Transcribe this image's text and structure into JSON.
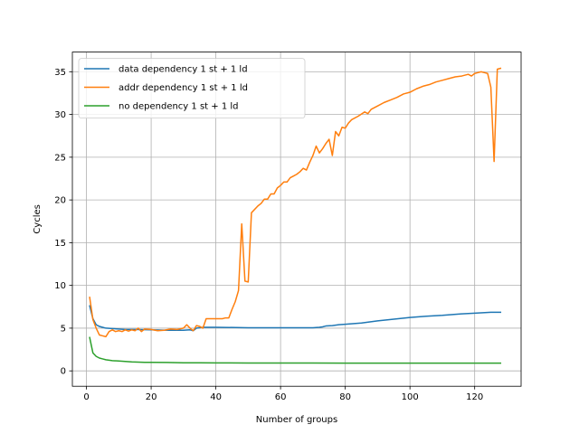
{
  "chart_data": {
    "type": "line",
    "title": "",
    "xlabel": "Number of groups",
    "ylabel": "Cycles",
    "xlim": [
      -4.35,
      134.35
    ],
    "ylim": [
      -1.8,
      37.3
    ],
    "xticks": [
      0,
      20,
      40,
      60,
      80,
      100,
      120
    ],
    "yticks": [
      0,
      5,
      10,
      15,
      20,
      25,
      30,
      35
    ],
    "grid": true,
    "legend_position": "top-left",
    "series": [
      {
        "name": "data dependency 1 st + 1 ld",
        "color": "#1f77b4",
        "x": [
          1,
          2,
          3,
          4,
          5,
          6,
          8,
          10,
          12,
          15,
          20,
          25,
          30,
          32,
          33,
          34,
          35,
          36,
          40,
          50,
          60,
          70,
          72,
          73,
          74,
          76,
          78,
          80,
          85,
          90,
          95,
          100,
          105,
          110,
          115,
          120,
          125,
          128
        ],
        "y": [
          7.6,
          6.1,
          5.4,
          5.2,
          5.1,
          5.0,
          4.95,
          4.9,
          4.85,
          4.85,
          4.8,
          4.75,
          4.75,
          4.8,
          4.7,
          5.0,
          5.05,
          5.1,
          5.1,
          5.05,
          5.05,
          5.05,
          5.1,
          5.15,
          5.25,
          5.3,
          5.4,
          5.45,
          5.6,
          5.85,
          6.05,
          6.25,
          6.4,
          6.5,
          6.65,
          6.75,
          6.85,
          6.85
        ]
      },
      {
        "name": "addr dependency 1 st + 1 ld",
        "color": "#ff7f0e",
        "x": [
          1,
          2,
          3,
          4,
          5,
          6,
          7,
          8,
          9,
          10,
          11,
          12,
          13,
          14,
          15,
          16,
          17,
          18,
          20,
          22,
          24,
          26,
          28,
          30,
          31,
          32,
          33,
          34,
          35,
          36,
          37,
          38,
          40,
          42,
          43,
          44,
          45,
          46,
          47,
          48,
          49,
          50,
          51,
          53,
          54,
          55,
          56,
          57,
          58,
          59,
          60,
          61,
          62,
          63,
          64,
          65,
          66,
          67,
          68,
          69,
          70,
          71,
          72,
          73,
          74,
          75,
          76,
          77,
          78,
          79,
          80,
          81,
          82,
          84,
          86,
          87,
          88,
          90,
          92,
          94,
          96,
          98,
          100,
          102,
          104,
          106,
          108,
          110,
          112,
          114,
          116,
          118,
          119,
          120,
          121,
          122,
          123,
          124,
          125,
          126,
          127,
          128
        ],
        "y": [
          8.6,
          6.0,
          5.0,
          4.2,
          4.1,
          4.0,
          4.6,
          4.8,
          4.6,
          4.7,
          4.6,
          4.8,
          4.65,
          4.8,
          4.7,
          5.0,
          4.6,
          4.9,
          4.85,
          4.7,
          4.75,
          4.9,
          4.85,
          5.0,
          5.4,
          5.0,
          4.7,
          5.3,
          5.2,
          5.0,
          6.1,
          6.1,
          6.1,
          6.1,
          6.2,
          6.2,
          7.2,
          8.1,
          9.4,
          17.2,
          10.5,
          10.4,
          18.5,
          19.3,
          19.6,
          20.1,
          20.1,
          20.7,
          20.7,
          21.4,
          21.7,
          22.1,
          22.1,
          22.6,
          22.8,
          23.0,
          23.3,
          23.7,
          23.5,
          24.4,
          25.2,
          26.3,
          25.5,
          26.0,
          26.6,
          27.1,
          25.2,
          28.0,
          27.5,
          28.5,
          28.4,
          29.0,
          29.4,
          29.8,
          30.3,
          30.1,
          30.6,
          31.0,
          31.4,
          31.7,
          32.0,
          32.4,
          32.6,
          33.0,
          33.3,
          33.5,
          33.8,
          34.0,
          34.2,
          34.4,
          34.5,
          34.7,
          34.5,
          34.8,
          34.9,
          35.0,
          34.9,
          34.8,
          33.2,
          24.5,
          35.3,
          35.4
        ]
      },
      {
        "name": "no dependency 1 st + 1 ld",
        "color": "#2ca02c",
        "x": [
          1,
          2,
          3,
          4,
          5,
          6,
          7,
          8,
          10,
          12,
          14,
          16,
          18,
          20,
          25,
          30,
          35,
          40,
          50,
          60,
          70,
          80,
          90,
          100,
          110,
          120,
          128
        ],
        "y": [
          3.9,
          2.1,
          1.7,
          1.5,
          1.4,
          1.3,
          1.25,
          1.2,
          1.15,
          1.1,
          1.05,
          1.03,
          1.0,
          1.0,
          0.98,
          0.95,
          0.95,
          0.93,
          0.92,
          0.92,
          0.92,
          0.91,
          0.91,
          0.91,
          0.9,
          0.9,
          0.9
        ]
      }
    ]
  }
}
